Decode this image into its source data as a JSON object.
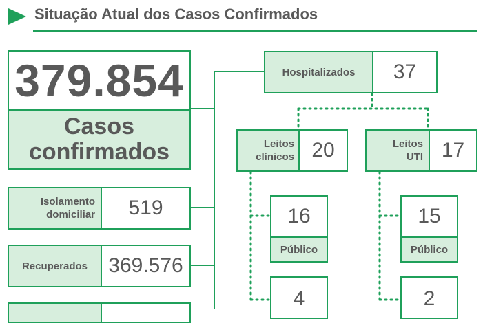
{
  "page": {
    "title": "Situação Atual dos Casos Confirmados"
  },
  "colors": {
    "accent_green": "#1fa05a",
    "light_green_fill": "#d7eedd",
    "text_gray": "#595959"
  },
  "icons": {
    "title_marker": "play-triangle-icon"
  },
  "confirmed": {
    "value": "379.854",
    "label": "Casos confirmados"
  },
  "home_isolation": {
    "label": "Isolamento domiciliar",
    "value": "519"
  },
  "recovered": {
    "label": "Recuperados",
    "value": "369.576"
  },
  "hospitalized": {
    "label": "Hospitalizados",
    "value": "37"
  },
  "clinical_beds": {
    "label": "Leitos clínicos",
    "value": "20",
    "public": {
      "value": "16",
      "label": "Público"
    },
    "private": {
      "value": "4"
    }
  },
  "icu_beds": {
    "label": "Leitos UTI",
    "value": "17",
    "public": {
      "value": "15",
      "label": "Público"
    },
    "private": {
      "value": "2"
    }
  }
}
